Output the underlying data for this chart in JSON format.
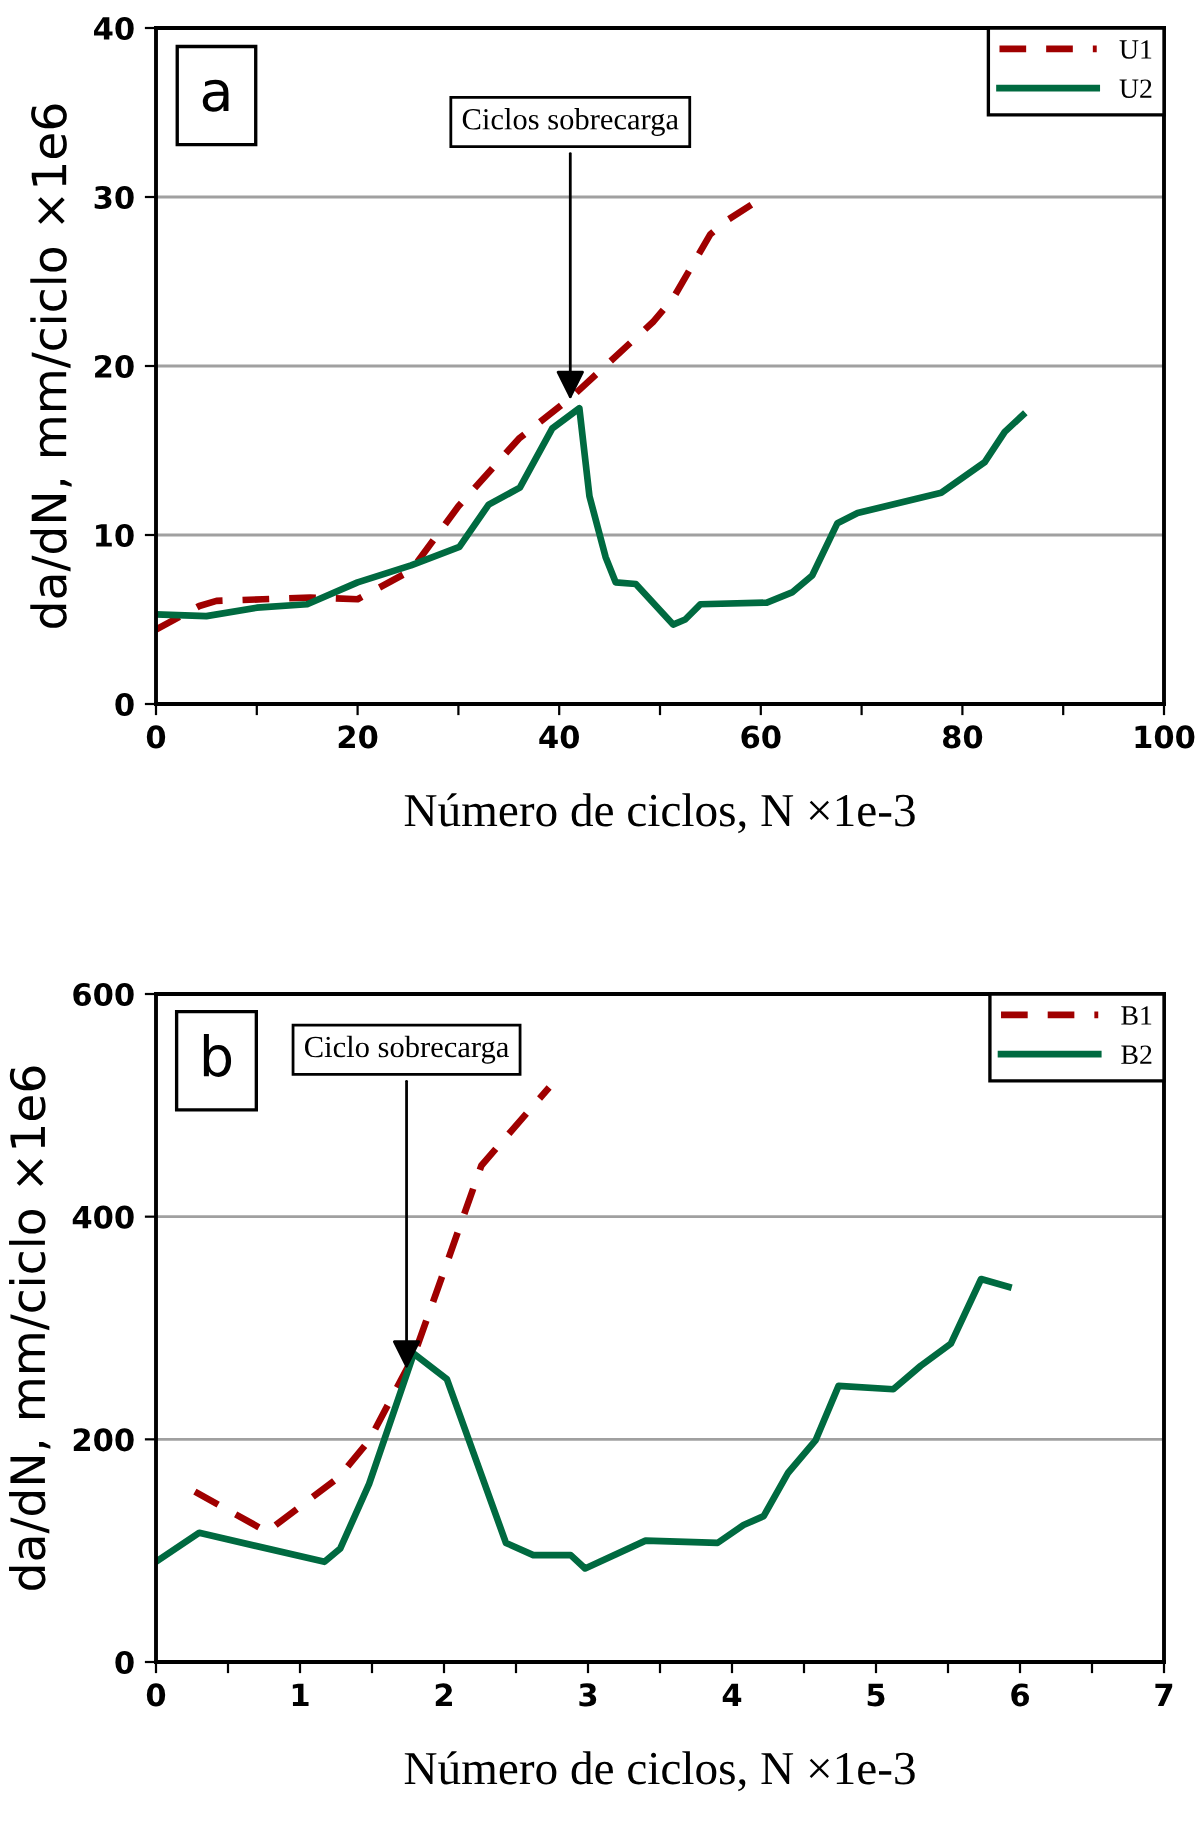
{
  "chart_data": [
    {
      "type": "line",
      "title": "a",
      "xlabel": "Número de ciclos, N ×1e-3",
      "ylabel": "da/dN, mm/ciclo ×1e6",
      "xlim": [
        0,
        100
      ],
      "xticks": [
        0,
        {
          "value": 10,
          "label": null
        },
        20,
        {
          "value": 30,
          "label": null
        },
        40,
        {
          "value": 50,
          "label": null
        },
        60,
        {
          "value": 70,
          "label": null
        },
        80,
        {
          "value": 90,
          "label": null
        },
        100
      ],
      "ylim": [
        0,
        40
      ],
      "yticks": [
        0,
        10,
        20,
        30,
        40
      ],
      "grid": "y",
      "legend": "top right",
      "marker": "none",
      "annotations": [
        {
          "text": "Ciclos sobrecarga",
          "x": 41.1,
          "y": 18
        }
      ],
      "series": [
        {
          "name": "U1",
          "color": "#a00000",
          "line_style": "dashed",
          "x": [
            0,
            4.3,
            6,
            10.6,
            15.3,
            20,
            25.3,
            30,
            36,
            41.3,
            49.3,
            51.3,
            55,
            56.6,
            60
          ],
          "values": [
            4.4,
            5.8,
            6.1,
            6.2,
            6.3,
            6.2,
            7.9,
            11.7,
            15.7,
            18.2,
            22.6,
            24,
            27.8,
            28.6,
            29.9
          ]
        },
        {
          "name": "U2",
          "color": "#006a40",
          "line_style": "solid",
          "x": [
            0,
            5,
            10,
            15,
            20,
            25.3,
            30.1,
            33,
            36.1,
            39.3,
            42,
            43,
            44.6,
            45.6,
            47.6,
            51.3,
            52.5,
            54,
            60.6,
            63.1,
            65.1,
            67.6,
            69.6,
            77.9,
            82.2,
            84.2,
            86
          ],
          "values": [
            5.3,
            5.2,
            5.7,
            5.9,
            7.2,
            8.2,
            9.3,
            11.8,
            12.8,
            16.3,
            17.5,
            12.3,
            8.7,
            7.2,
            7.1,
            4.7,
            5,
            5.9,
            6,
            6.6,
            7.6,
            10.7,
            11.3,
            12.5,
            14.3,
            16.1,
            17.1
          ]
        }
      ]
    },
    {
      "type": "line",
      "title": "b",
      "xlabel": "Número de ciclos, N ×1e-3",
      "ylabel": "da/dN, mm/ciclo ×1e6",
      "xlim": [
        0,
        7
      ],
      "xticks": [
        0,
        {
          "value": 0.5,
          "label": null
        },
        1,
        {
          "value": 1.5,
          "label": null
        },
        2,
        {
          "value": 2.5,
          "label": null
        },
        3,
        {
          "value": 3.5,
          "label": null
        },
        4,
        {
          "value": 4.5,
          "label": null
        },
        5,
        {
          "value": 5.5,
          "label": null
        },
        6,
        {
          "value": 6.5,
          "label": null
        },
        7
      ],
      "ylim": [
        0,
        600
      ],
      "yticks": [
        0,
        200,
        400,
        600
      ],
      "grid": "y",
      "legend": "top right",
      "marker": "none",
      "annotations": [
        {
          "text": "Ciclo sobrecarga",
          "x": 1.74,
          "y": 263
        }
      ],
      "series": [
        {
          "name": "B1",
          "color": "#a00000",
          "line_style": "dashed",
          "x": [
            0.27,
            0.77,
            1.27,
            1.48,
            1.79,
            2.0,
            2.26,
            2.36,
            2.73
          ],
          "values": [
            153,
            117,
            166,
            199,
            275,
            351,
            446,
            461,
            516
          ]
        },
        {
          "name": "B2",
          "color": "#006a40",
          "line_style": "solid",
          "x": [
            0,
            0.3,
            1.17,
            1.28,
            1.48,
            1.79,
            2.02,
            2.43,
            2.62,
            2.88,
            2.98,
            3.4,
            3.9,
            4.08,
            4.22,
            4.39,
            4.58,
            4.74,
            5.12,
            5.31,
            5.52,
            5.73,
            5.92
          ],
          "values": [
            90,
            116,
            90,
            102,
            160,
            277,
            254,
            107,
            96,
            96,
            84,
            109,
            107,
            123,
            131,
            170,
            199,
            248,
            245,
            266,
            286,
            344,
            337
          ]
        }
      ]
    }
  ]
}
